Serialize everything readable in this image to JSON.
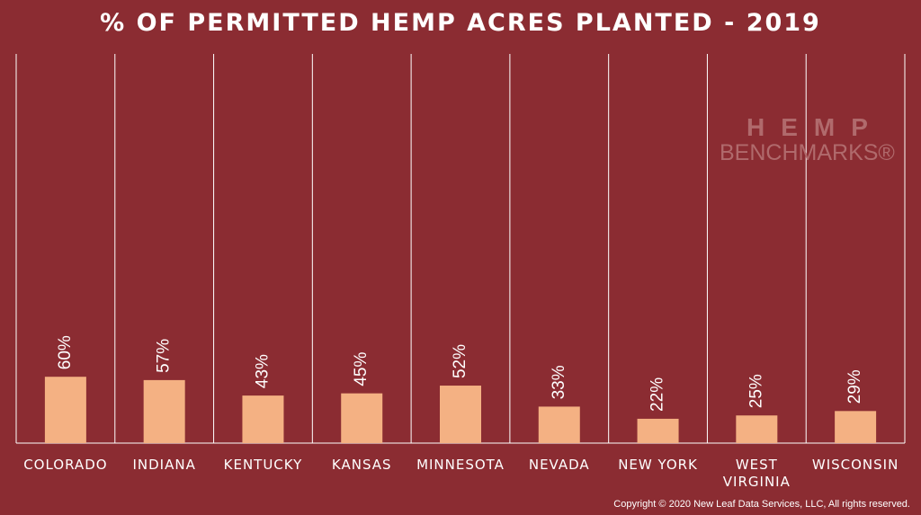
{
  "chart_data": {
    "type": "bar",
    "title": "% OF PERMITTED HEMP ACRES PLANTED - 2019",
    "categories": [
      "COLORADO",
      "INDIANA",
      "KENTUCKY",
      "KANSAS",
      "MINNESOTA",
      "NEVADA",
      "NEW YORK",
      "WEST VIRGINIA",
      "WISCONSIN"
    ],
    "category_lines": [
      [
        "COLORADO"
      ],
      [
        "INDIANA"
      ],
      [
        "KENTUCKY"
      ],
      [
        "KANSAS"
      ],
      [
        "MINNESOTA"
      ],
      [
        "NEVADA"
      ],
      [
        "NEW YORK"
      ],
      [
        "WEST",
        "VIRGINIA"
      ],
      [
        "WISCONSIN"
      ]
    ],
    "values": [
      60,
      57,
      43,
      45,
      52,
      33,
      22,
      25,
      29
    ],
    "value_labels": [
      "60%",
      "57%",
      "43%",
      "45%",
      "52%",
      "33%",
      "22%",
      "25%",
      "29%"
    ],
    "ylim": [
      0,
      100
    ],
    "grid": false,
    "bar_color": "#f4b183",
    "background_color": "#8b2c32",
    "divider_color": "#ffffff"
  },
  "watermark": {
    "line1": "HEMP",
    "line2": "BENCHMARKS®"
  },
  "copyright": "Copyright © 2020 New Leaf Data Services, LLC, All rights reserved."
}
